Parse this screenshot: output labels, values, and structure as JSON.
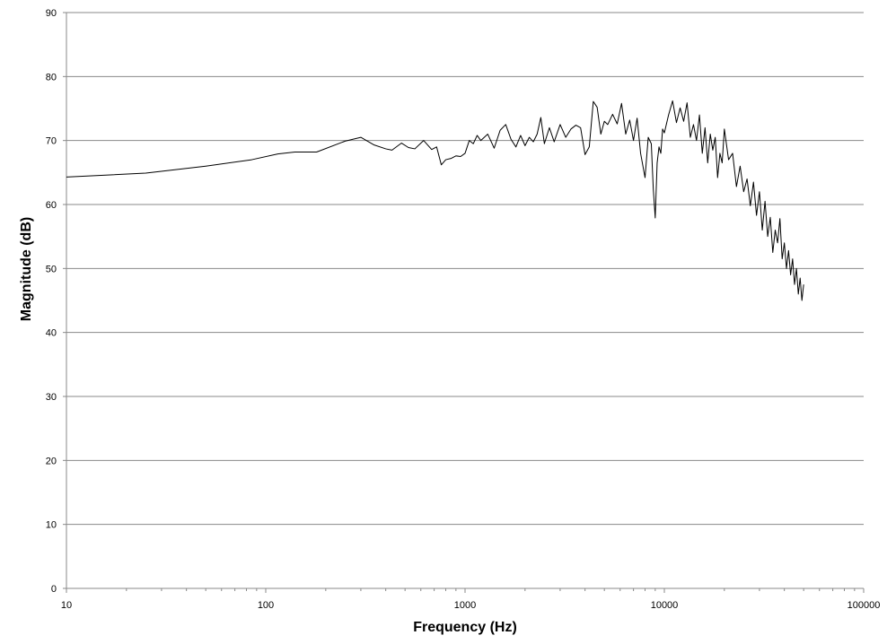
{
  "chart_data": {
    "type": "line",
    "title": "",
    "xlabel": "Frequency (Hz)",
    "ylabel": "Magnitude (dB)",
    "x_scale": "log",
    "xlim": [
      10,
      100000
    ],
    "ylim": [
      0,
      90
    ],
    "x_ticks": [
      10,
      100,
      1000,
      10000,
      100000
    ],
    "x_tick_labels": [
      "10",
      "100",
      "1000",
      "10000",
      "100000"
    ],
    "y_ticks": [
      0,
      10,
      20,
      30,
      40,
      50,
      60,
      70,
      80,
      90
    ],
    "y_tick_labels": [
      "0",
      "10",
      "20",
      "30",
      "40",
      "50",
      "60",
      "70",
      "80",
      "90"
    ],
    "grid": {
      "horizontal": true,
      "vertical": false
    },
    "legend": "none",
    "line_color": "#000000",
    "series": [
      {
        "x": [
          10,
          25,
          50,
          85,
          115,
          140,
          180,
          250,
          300,
          350,
          400,
          430,
          480,
          520,
          560,
          620,
          680,
          720,
          760,
          800,
          850,
          900,
          950,
          1000,
          1050,
          1100,
          1150,
          1200,
          1300,
          1400,
          1500,
          1600,
          1700,
          1800,
          1900,
          2000,
          2100,
          2200,
          2300,
          2400,
          2500,
          2650,
          2800,
          3000,
          3200,
          3400,
          3600,
          3800,
          4000,
          4200,
          4400,
          4600,
          4800,
          5000,
          5200,
          5500,
          5800,
          6100,
          6400,
          6700,
          7000,
          7300,
          7600,
          8000,
          8300,
          8600,
          8800,
          9000,
          9200,
          9400,
          9600,
          9800,
          10000,
          10500,
          11000,
          11500,
          12000,
          12500,
          13000,
          13500,
          14000,
          14500,
          15000,
          15500,
          16000,
          16500,
          17000,
          17500,
          18000,
          18500,
          19000,
          19500,
          20000,
          21000,
          22000,
          23000,
          24000,
          25000,
          26000,
          27000,
          28000,
          29000,
          30000,
          31000,
          32000,
          33000,
          34000,
          35000,
          36000,
          37000,
          38000,
          39000,
          40000,
          41000,
          42000,
          43000,
          44000,
          45000,
          46000,
          47000,
          48000,
          49000,
          50000
        ],
        "y": [
          64.3,
          64.9,
          66.0,
          67.0,
          67.9,
          68.2,
          68.2,
          69.9,
          70.5,
          69.3,
          68.7,
          68.5,
          69.6,
          68.9,
          68.7,
          70.0,
          68.6,
          69.0,
          66.2,
          67.0,
          67.2,
          67.6,
          67.5,
          68.0,
          70.0,
          69.5,
          70.8,
          70.0,
          71.0,
          68.8,
          71.6,
          72.5,
          70.2,
          69.0,
          70.8,
          69.2,
          70.5,
          69.8,
          71.0,
          73.6,
          69.5,
          72.0,
          69.8,
          72.5,
          70.5,
          71.8,
          72.4,
          72.0,
          67.8,
          69.0,
          76.1,
          75.2,
          71.0,
          73.0,
          72.5,
          74.1,
          72.6,
          75.8,
          71.0,
          73.2,
          70.0,
          73.5,
          68.0,
          64.2,
          70.5,
          69.5,
          62.4,
          57.9,
          66.5,
          69.0,
          68.0,
          71.8,
          71.2,
          74.0,
          76.2,
          72.8,
          75.1,
          73.0,
          75.9,
          70.5,
          72.5,
          70.0,
          74.0,
          68.0,
          72.0,
          66.5,
          71.0,
          68.5,
          70.5,
          64.2,
          68.0,
          66.5,
          71.8,
          67.0,
          68.0,
          62.8,
          66.0,
          62.0,
          64.0,
          59.8,
          63.5,
          58.3,
          62.0,
          56.0,
          60.5,
          55.0,
          58.0,
          52.5,
          56.0,
          54.0,
          57.8,
          51.5,
          54.0,
          50.0,
          52.8,
          49.0,
          51.5,
          47.5,
          50.0,
          46.0,
          48.5,
          45.0,
          47.5
        ]
      }
    ]
  }
}
